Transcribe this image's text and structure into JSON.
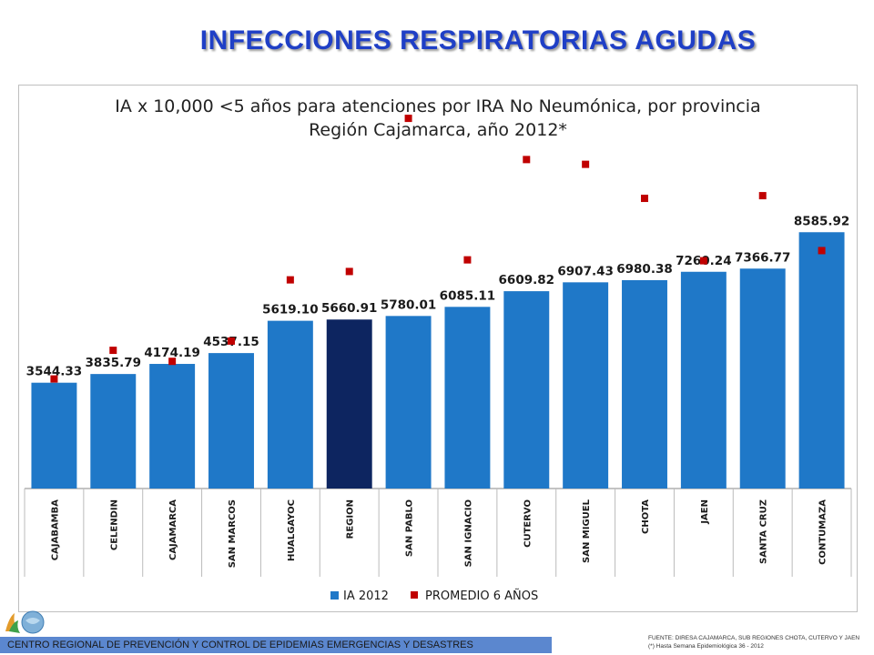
{
  "header": {
    "title": "INFECCIONES RESPIRATORIAS AGUDAS"
  },
  "colors": {
    "bar": "#1f78c8",
    "highlight_bar": "#0d2560",
    "marker": "#c00000",
    "title": "#1f3fc6",
    "footer": "#5b87cf"
  },
  "chart_data": {
    "type": "bar",
    "title": "IA x 10,000 <5 años para atenciones por IRA No Neumónica, por provincia",
    "subtitle": "Región Cajamarca, año 2012*",
    "categories": [
      "CAJABAMBA",
      "CELENDIN",
      "CAJAMARCA",
      "SAN MARCOS",
      "HUALGAYOC",
      "REGION",
      "SAN PABLO",
      "SAN IGNACIO",
      "CUTERVO",
      "SAN MIGUEL",
      "CHOTA",
      "JAEN",
      "SANTA CRUZ",
      "CONTUMAZA"
    ],
    "series": [
      {
        "name": "IA 2012",
        "type": "bar",
        "values": [
          3544.33,
          3835.79,
          4174.19,
          4537.15,
          5619.1,
          5660.91,
          5780.01,
          6085.11,
          6609.82,
          6907.43,
          6980.38,
          7260.24,
          7366.77,
          8585.92
        ],
        "labels": [
          "3544.33",
          "3835.79",
          "4174.19",
          "4537.15",
          "5619.10",
          "5660.91",
          "5780.01",
          "6085.11",
          "6609.82",
          "6907.43",
          "6980.38",
          "7260.24",
          "7366.77",
          "8585.92"
        ]
      },
      {
        "name": "PROMEDIO 6 AÑOS",
        "type": "marker",
        "values": [
          3670,
          4630,
          4260,
          4940,
          6990,
          7270,
          12400,
          7660,
          11020,
          10860,
          9720,
          7630,
          9810,
          7970
        ]
      }
    ],
    "highlight_category": "REGION",
    "ylim": [
      0,
      13500
    ],
    "grid": false,
    "legend_position": "bottom"
  },
  "footer": {
    "bar_text": "CENTRO REGIONAL DE PREVENCIÓN Y CONTROL DE EPIDEMIAS EMERGENCIAS Y DESASTRES",
    "source_line1": "FUENTE: DIRESA CAJAMARCA, SUB REGIONES CHOTA, CUTERVO Y JAEN",
    "source_line2": "(*) Hasta Semana Epidemiológica 36 - 2012"
  }
}
